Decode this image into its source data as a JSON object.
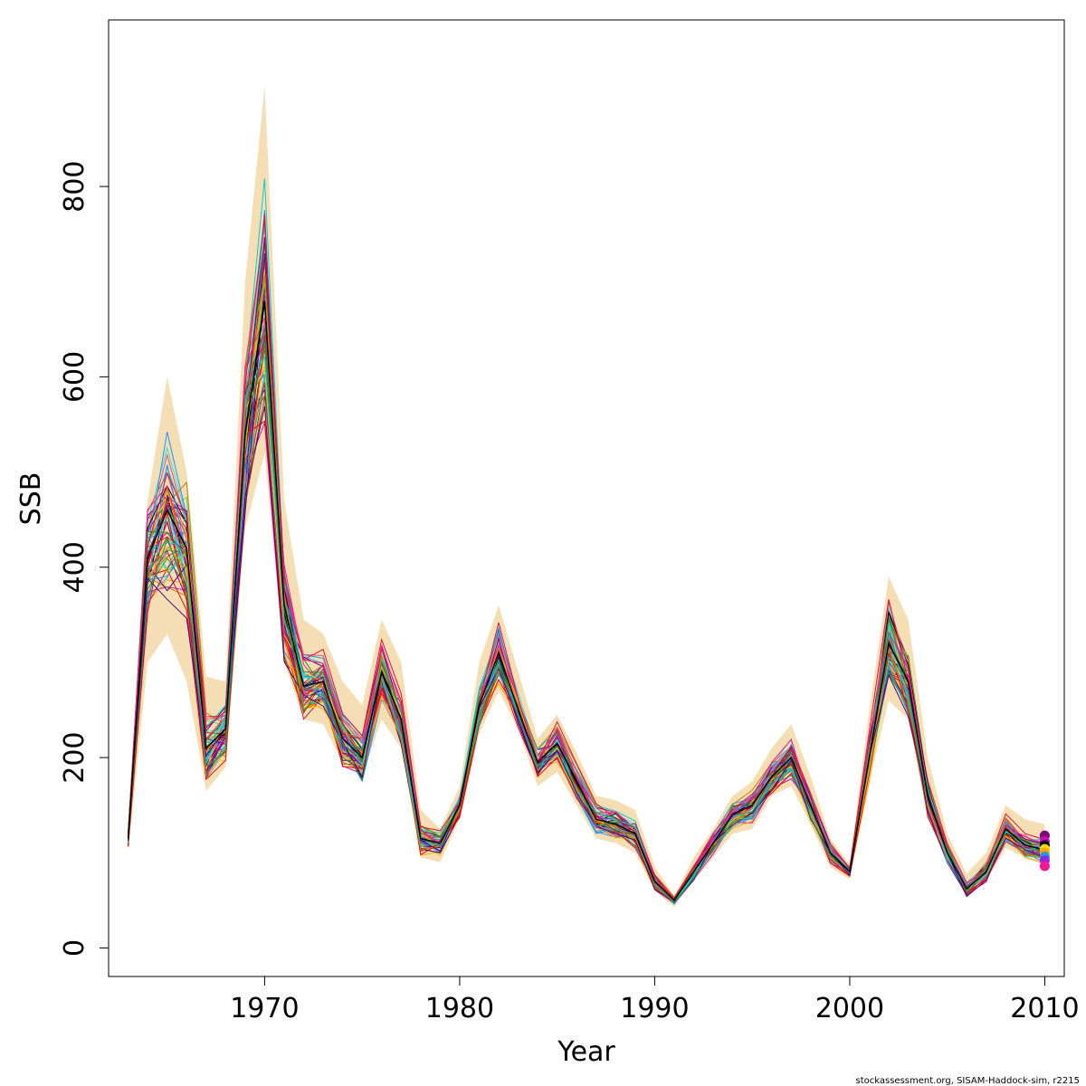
{
  "chart_data": {
    "type": "line",
    "xlabel": "Year",
    "ylabel": "SSB",
    "xlim": [
      1962,
      2011
    ],
    "ylim": [
      -30,
      975
    ],
    "x_ticks": [
      1970,
      1980,
      1990,
      2000,
      2010
    ],
    "y_ticks": [
      0,
      200,
      400,
      600,
      800
    ],
    "grid": false,
    "legend": "none",
    "x": [
      1963,
      1964,
      1965,
      1966,
      1967,
      1968,
      1969,
      1970,
      1971,
      1972,
      1973,
      1974,
      1975,
      1976,
      1977,
      1978,
      1979,
      1980,
      1981,
      1982,
      1983,
      1984,
      1985,
      1986,
      1987,
      1988,
      1989,
      1990,
      1991,
      1992,
      1993,
      1994,
      1995,
      1996,
      1997,
      1998,
      1999,
      2000,
      2001,
      2002,
      2003,
      2004,
      2005,
      2006,
      2007,
      2008,
      2009,
      2010
    ],
    "median": [
      115,
      410,
      460,
      420,
      210,
      230,
      540,
      680,
      360,
      275,
      280,
      220,
      200,
      290,
      240,
      115,
      110,
      150,
      255,
      310,
      250,
      195,
      215,
      175,
      135,
      130,
      120,
      70,
      50,
      80,
      110,
      140,
      150,
      180,
      200,
      150,
      100,
      80,
      200,
      320,
      280,
      160,
      100,
      62,
      80,
      125,
      108,
      103
    ],
    "band_lower": [
      102,
      300,
      330,
      280,
      165,
      190,
      440,
      520,
      300,
      240,
      235,
      195,
      180,
      240,
      210,
      95,
      90,
      135,
      225,
      270,
      230,
      170,
      185,
      150,
      115,
      110,
      100,
      60,
      43,
      70,
      95,
      120,
      125,
      160,
      170,
      130,
      85,
      72,
      175,
      260,
      240,
      140,
      88,
      55,
      70,
      105,
      95,
      88
    ],
    "band_upper": [
      130,
      470,
      600,
      500,
      285,
      280,
      700,
      905,
      470,
      345,
      330,
      280,
      255,
      345,
      300,
      145,
      125,
      170,
      300,
      360,
      290,
      220,
      245,
      205,
      160,
      155,
      145,
      85,
      55,
      95,
      125,
      160,
      175,
      210,
      235,
      180,
      115,
      88,
      250,
      390,
      345,
      200,
      120,
      78,
      100,
      150,
      135,
      130
    ],
    "series_colors": [
      "#000000",
      "#DF536B",
      "#61D04F",
      "#2297E6",
      "#28E2E5",
      "#CD0BBC",
      "#F5C710",
      "#9E9E9E",
      "#FF0000",
      "#800080",
      "#FFA500",
      "#1E90FF",
      "#228B22",
      "#FF1493",
      "#8B4513",
      "#00CED1",
      "#B8860B",
      "#4B0082",
      "#DC143C",
      "#2E8B57"
    ],
    "band_color": "#F5DEB3",
    "final_points": [
      118,
      112,
      108,
      104,
      100,
      96,
      92,
      86
    ],
    "final_point_colors": [
      "#800080",
      "#CD0BBC",
      "#000000",
      "#FFD700",
      "#FFA500",
      "#2297E6",
      "#8A2BE2",
      "#FF1493"
    ]
  },
  "credit": "stockassessment.org, SISAM-Haddock-sim, r2215"
}
